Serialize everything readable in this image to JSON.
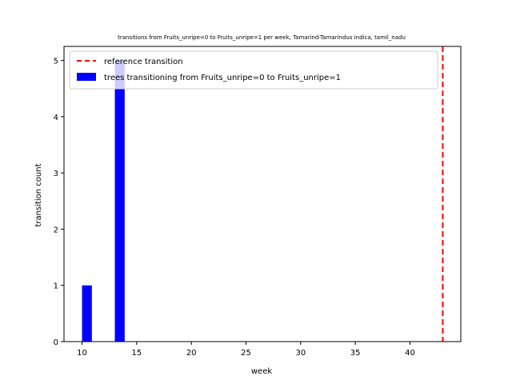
{
  "chart_data": {
    "type": "bar",
    "title": "transitions from Fruits_unripe=0 to Fruits_unripe=1 per week, Tamarind-Tamarindus indica, tamil_nadu",
    "xlabel": "week",
    "ylabel": "transition count",
    "xlim": [
      8.35,
      44.65
    ],
    "ylim": [
      0,
      5.25
    ],
    "x_ticks": [
      10,
      15,
      20,
      25,
      30,
      35,
      40
    ],
    "y_ticks": [
      0,
      1,
      2,
      3,
      4,
      5
    ],
    "grid": false,
    "legend_position": "top-left",
    "series": [
      {
        "name": "trees transitioning from Fruits_unripe=0 to Fruits_unripe=1",
        "color": "#0000ff",
        "bars": [
          {
            "x": 10,
            "value": 1
          },
          {
            "x": 13,
            "value": 5
          }
        ],
        "bar_width_weeks": 0.9
      }
    ],
    "reference_lines": [
      {
        "name": "reference transition",
        "x": 43,
        "color": "#ff0000",
        "style": "dashed"
      }
    ]
  }
}
